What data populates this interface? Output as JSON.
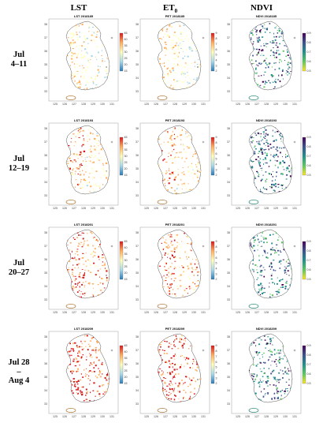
{
  "columns": [
    {
      "label": "LST",
      "prefix": "LST",
      "colors": [
        "#2c7bb6",
        "#abd9e9",
        "#ffffbf",
        "#fdae61",
        "#d7191c"
      ],
      "ticks": [
        "45",
        "40",
        "35",
        "30",
        "25",
        "20",
        "15"
      ]
    },
    {
      "label": "ET",
      "sub": "0",
      "prefix": "PET",
      "colors": [
        "#2c7bb6",
        "#abd9e9",
        "#ffffbf",
        "#fdae61",
        "#d7191c"
      ],
      "ticks": [
        "9",
        "8",
        "7",
        "6",
        "5",
        "4",
        "3",
        "2"
      ]
    },
    {
      "label": "NDVI",
      "prefix": "NDVI",
      "colors": [
        "#440154",
        "#3b528b",
        "#21918c",
        "#5ec962",
        "#fde725"
      ],
      "ticks": [
        "0.9",
        "0.8",
        "0.7",
        "0.6",
        "0.5"
      ]
    }
  ],
  "rows": [
    {
      "label_lines": [
        "Jul",
        "4–11"
      ],
      "date": "2018185",
      "intensity": 0.35
    },
    {
      "label_lines": [
        "Jul",
        "12–19"
      ],
      "date": "2018193",
      "intensity": 0.6
    },
    {
      "label_lines": [
        "Jul",
        "20–27"
      ],
      "date": "2018201",
      "intensity": 0.8
    },
    {
      "label_lines": [
        "Jul 28",
        "–",
        "Aug 4"
      ],
      "date": "2018209",
      "intensity": 1.0
    }
  ],
  "x_ticks": [
    "125",
    "126",
    "127",
    "128",
    "129",
    "130",
    "131"
  ],
  "y_ticks": [
    "38",
    "37",
    "36",
    "35",
    "34",
    "33"
  ]
}
